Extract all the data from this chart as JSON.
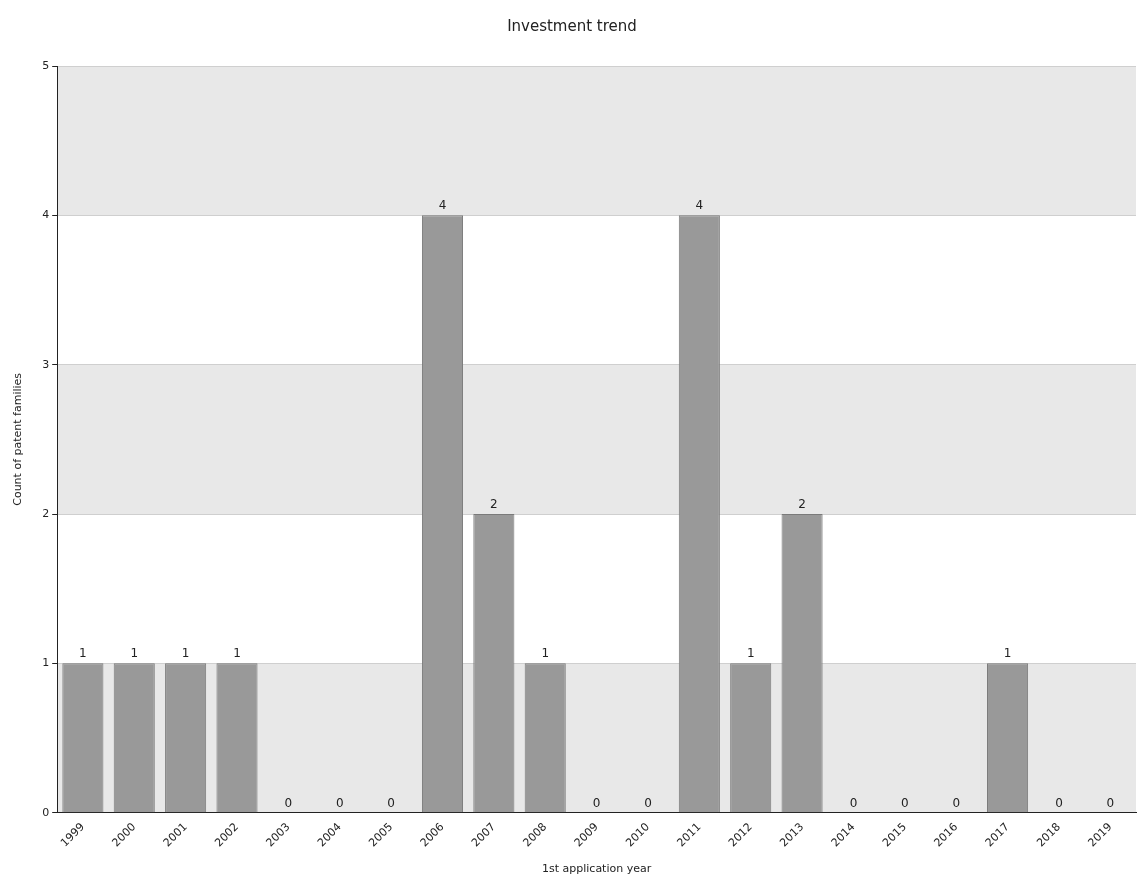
{
  "chart_data": {
    "type": "bar",
    "title": "Investment trend",
    "xlabel": "1st application year",
    "ylabel": "Count of patent families",
    "categories": [
      "1999",
      "2000",
      "2001",
      "2002",
      "2003",
      "2004",
      "2005",
      "2006",
      "2007",
      "2008",
      "2009",
      "2010",
      "2011",
      "2012",
      "2013",
      "2014",
      "2015",
      "2016",
      "2017",
      "2018",
      "2019"
    ],
    "values": [
      1,
      1,
      1,
      1,
      0,
      0,
      0,
      4,
      2,
      1,
      0,
      0,
      4,
      1,
      2,
      0,
      0,
      0,
      1,
      0,
      0
    ],
    "color": "#999999",
    "ylim": [
      0,
      5
    ],
    "yticks": [
      0,
      1,
      2,
      3,
      4,
      5
    ],
    "grid": "y",
    "data_labels": true,
    "legend": false
  }
}
